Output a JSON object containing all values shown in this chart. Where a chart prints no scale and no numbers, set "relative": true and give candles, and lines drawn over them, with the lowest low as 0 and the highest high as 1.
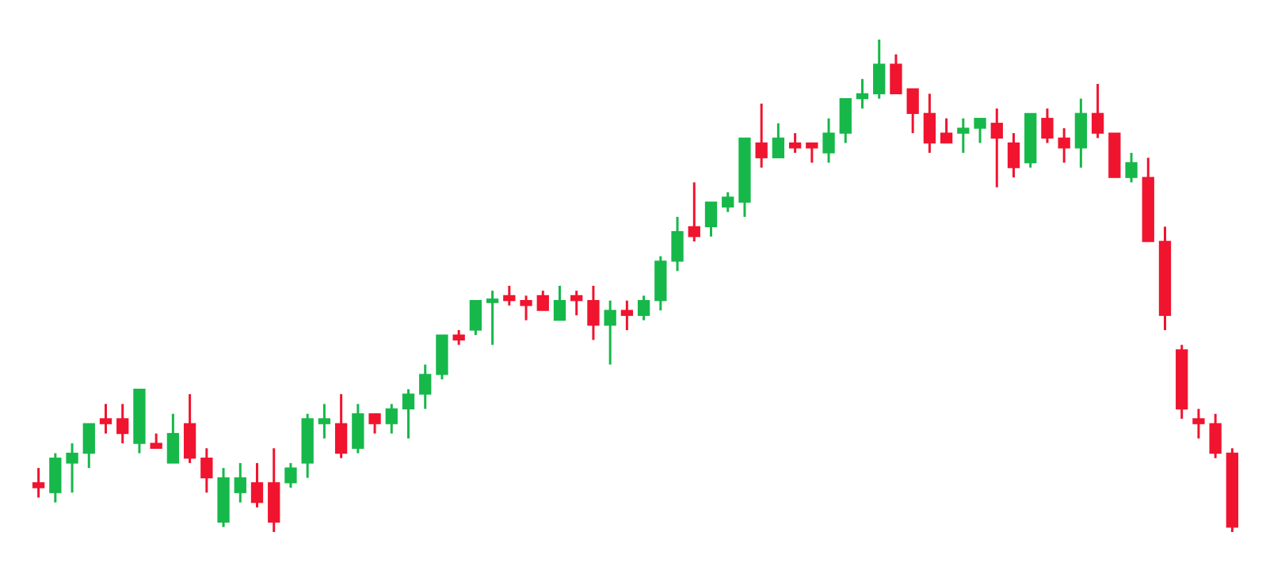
{
  "chart_data": {
    "type": "candlestick",
    "relative": true,
    "categories": [
      null,
      null,
      null,
      null,
      null,
      null,
      null,
      null,
      null,
      null,
      null,
      null,
      null,
      null,
      null,
      null,
      null,
      null,
      null,
      null,
      null,
      null,
      null,
      null,
      null,
      null,
      null,
      null,
      null,
      null,
      null,
      null,
      null,
      null,
      null,
      null,
      null,
      null,
      null,
      null,
      null,
      null,
      null,
      null,
      null,
      null,
      null,
      null,
      null,
      null,
      null,
      null,
      null,
      null,
      null,
      null,
      null,
      null,
      null,
      null,
      null,
      null,
      null,
      null,
      null,
      null,
      null,
      null,
      null,
      null,
      null,
      null
    ],
    "ohlc": [
      [
        0.1,
        0.13,
        0.07,
        0.09
      ],
      [
        0.08,
        0.16,
        0.06,
        0.15
      ],
      [
        0.14,
        0.18,
        0.08,
        0.16
      ],
      [
        0.16,
        0.22,
        0.13,
        0.22
      ],
      [
        0.23,
        0.26,
        0.2,
        0.22
      ],
      [
        0.23,
        0.26,
        0.18,
        0.2
      ],
      [
        0.18,
        0.29,
        0.16,
        0.29
      ],
      [
        0.18,
        0.2,
        0.17,
        0.17
      ],
      [
        0.14,
        0.24,
        0.14,
        0.2
      ],
      [
        0.22,
        0.28,
        0.14,
        0.15
      ],
      [
        0.15,
        0.17,
        0.08,
        0.11
      ],
      [
        0.02,
        0.13,
        0.01,
        0.11
      ],
      [
        0.08,
        0.14,
        0.06,
        0.11
      ],
      [
        0.1,
        0.14,
        0.05,
        0.06
      ],
      [
        0.1,
        0.17,
        0,
        0.02
      ],
      [
        0.1,
        0.14,
        0.09,
        0.13
      ],
      [
        0.14,
        0.24,
        0.11,
        0.23
      ],
      [
        0.22,
        0.26,
        0.19,
        0.23
      ],
      [
        0.22,
        0.28,
        0.15,
        0.16
      ],
      [
        0.17,
        0.26,
        0.16,
        0.24
      ],
      [
        0.24,
        0.24,
        0.2,
        0.22
      ],
      [
        0.22,
        0.26,
        0.2,
        0.25
      ],
      [
        0.25,
        0.29,
        0.19,
        0.28
      ],
      [
        0.28,
        0.34,
        0.25,
        0.32
      ],
      [
        0.32,
        0.4,
        0.31,
        0.4
      ],
      [
        0.4,
        0.41,
        0.38,
        0.39
      ],
      [
        0.41,
        0.47,
        0.4,
        0.47
      ],
      [
        0.466,
        0.49,
        0.38,
        0.473
      ],
      [
        0.48,
        0.5,
        0.46,
        0.47
      ],
      [
        0.47,
        0.48,
        0.43,
        0.46
      ],
      [
        0.48,
        0.49,
        0.45,
        0.45
      ],
      [
        0.43,
        0.5,
        0.43,
        0.47
      ],
      [
        0.48,
        0.49,
        0.44,
        0.47
      ],
      [
        0.47,
        0.5,
        0.39,
        0.42
      ],
      [
        0.42,
        0.47,
        0.34,
        0.45
      ],
      [
        0.45,
        0.47,
        0.41,
        0.44
      ],
      [
        0.44,
        0.48,
        0.43,
        0.47
      ],
      [
        0.47,
        0.56,
        0.45,
        0.55
      ],
      [
        0.55,
        0.64,
        0.53,
        0.61
      ],
      [
        0.62,
        0.71,
        0.59,
        0.6
      ],
      [
        0.62,
        0.67,
        0.6,
        0.67
      ],
      [
        0.66,
        0.69,
        0.65,
        0.68
      ],
      [
        0.67,
        0.8,
        0.64,
        0.8
      ],
      [
        0.79,
        0.87,
        0.74,
        0.76
      ],
      [
        0.76,
        0.83,
        0.76,
        0.8
      ],
      [
        0.79,
        0.81,
        0.77,
        0.78
      ],
      [
        0.79,
        0.79,
        0.75,
        0.78
      ],
      [
        0.77,
        0.84,
        0.75,
        0.81
      ],
      [
        0.81,
        0.88,
        0.79,
        0.88
      ],
      [
        0.88,
        0.92,
        0.86,
        0.89
      ],
      [
        0.89,
        1,
        0.88,
        0.95
      ],
      [
        0.95,
        0.97,
        0.89,
        0.89
      ],
      [
        0.9,
        0.9,
        0.81,
        0.85
      ],
      [
        0.85,
        0.89,
        0.77,
        0.79
      ],
      [
        0.81,
        0.84,
        0.79,
        0.79
      ],
      [
        0.81,
        0.84,
        0.77,
        0.82
      ],
      [
        0.82,
        0.84,
        0.79,
        0.84
      ],
      [
        0.83,
        0.86,
        0.7,
        0.8
      ],
      [
        0.79,
        0.81,
        0.72,
        0.74
      ],
      [
        0.75,
        0.85,
        0.74,
        0.85
      ],
      [
        0.84,
        0.86,
        0.79,
        0.8
      ],
      [
        0.8,
        0.82,
        0.75,
        0.78
      ],
      [
        0.78,
        0.88,
        0.74,
        0.85
      ],
      [
        0.85,
        0.91,
        0.8,
        0.81
      ],
      [
        0.81,
        0.81,
        0.72,
        0.72
      ],
      [
        0.72,
        0.77,
        0.71,
        0.75
      ],
      [
        0.72,
        0.76,
        0.59,
        0.59
      ],
      [
        0.59,
        0.62,
        0.41,
        0.44
      ],
      [
        0.37,
        0.38,
        0.23,
        0.25
      ],
      [
        0.23,
        0.25,
        0.19,
        0.22
      ],
      [
        0.22,
        0.24,
        0.15,
        0.16
      ],
      [
        0.16,
        0.17,
        0.0,
        0.01
      ]
    ],
    "colors": [
      "#f0142f",
      "#16b84a",
      "#16b84a",
      "#16b84a",
      "#f0142f",
      "#f0142f",
      "#16b84a",
      "#f0142f",
      "#16b84a",
      "#f0142f",
      "#f0142f",
      "#16b84a",
      "#16b84a",
      "#f0142f",
      "#f0142f",
      "#16b84a",
      "#16b84a",
      "#16b84a",
      "#f0142f",
      "#16b84a",
      "#f0142f",
      "#16b84a",
      "#16b84a",
      "#16b84a",
      "#16b84a",
      "#f0142f",
      "#16b84a",
      "#16b84a",
      "#f0142f",
      "#f0142f",
      "#f0142f",
      "#16b84a",
      "#f0142f",
      "#f0142f",
      "#16b84a",
      "#f0142f",
      "#16b84a",
      "#16b84a",
      "#16b84a",
      "#f0142f",
      "#16b84a",
      "#16b84a",
      "#16b84a",
      "#f0142f",
      "#16b84a",
      "#f0142f",
      "#f0142f",
      "#16b84a",
      "#16b84a",
      "#16b84a",
      "#16b84a",
      "#f0142f",
      "#f0142f",
      "#f0142f",
      "#f0142f",
      "#16b84a",
      "#16b84a",
      "#f0142f",
      "#f0142f",
      "#16b84a",
      "#f0142f",
      "#f0142f",
      "#16b84a",
      "#f0142f",
      "#f0142f",
      "#16b84a",
      "#f0142f",
      "#f0142f",
      "#f0142f",
      "#f0142f",
      "#f0142f",
      "#f0142f"
    ]
  }
}
